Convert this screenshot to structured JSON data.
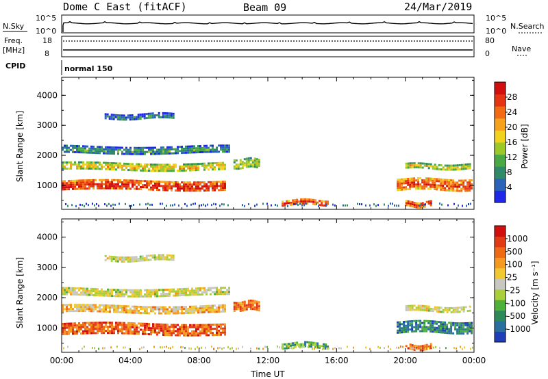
{
  "header": {
    "radar_title": "Dome C East (fitACF)",
    "beam": "Beam 09",
    "date": "24/Mar/2019"
  },
  "aux_panels": {
    "nsky_label": "N.Sky",
    "nsearch_label": "N.Search",
    "left_top": "10^5",
    "left_bottom": "10^0",
    "right_top": "10^5",
    "right_bottom": "10^0",
    "freq_label_1": "Freq.",
    "freq_label_2": "[MHz]",
    "freq_top": "18",
    "freq_bottom": "8",
    "nave_label": "Nave",
    "nave_top": "80",
    "nave_bottom": "0",
    "cpid_label": "CPID",
    "cpid_value": "normal 150"
  },
  "chart_data": [
    {
      "type": "heatmap",
      "title": "",
      "ylabel": "Slant Range [km]",
      "xlabel": "",
      "ylim": [
        200,
        4600
      ],
      "yticks": [
        "1000",
        "2000",
        "3000",
        "4000"
      ],
      "colorbar": {
        "label": "Power [dB]",
        "ticks": [
          "4",
          "8",
          "12",
          "16",
          "20",
          "24",
          "28"
        ],
        "colors": [
          "#1f28e8",
          "#2a63b8",
          "#2f8a6a",
          "#4aa845",
          "#9cc92a",
          "#f0d21f",
          "#f6a21c",
          "#f26a12",
          "#e53414",
          "#d10f0f"
        ]
      },
      "bands": [
        {
          "t0": 0.0,
          "t1": 9.5,
          "r": 1000,
          "w": 170,
          "v": 0.85
        },
        {
          "t0": 0.0,
          "t1": 9.5,
          "r": 1650,
          "w": 110,
          "v": 0.55
        },
        {
          "t0": 0.0,
          "t1": 9.8,
          "r": 2200,
          "w": 120,
          "v": 0.25
        },
        {
          "t0": 2.5,
          "t1": 6.5,
          "r": 3300,
          "w": 100,
          "v": 0.2
        },
        {
          "t0": 10.0,
          "t1": 11.5,
          "r": 1750,
          "w": 150,
          "v": 0.45
        },
        {
          "t0": 12.8,
          "t1": 15.5,
          "r": 450,
          "w": 80,
          "v": 0.85
        },
        {
          "t0": 19.5,
          "t1": 23.9,
          "r": 1050,
          "w": 180,
          "v": 0.75
        },
        {
          "t0": 20.0,
          "t1": 23.8,
          "r": 1650,
          "w": 80,
          "v": 0.5
        },
        {
          "t0": 20.0,
          "t1": 21.5,
          "r": 400,
          "w": 70,
          "v": 0.85
        }
      ]
    },
    {
      "type": "heatmap",
      "title": "",
      "ylabel": "Slant Range [km]",
      "xlabel": "Time UT",
      "ylim": [
        200,
        4600
      ],
      "yticks": [
        "1000",
        "2000",
        "3000",
        "4000"
      ],
      "xticks": [
        "00:00",
        "04:00",
        "08:00",
        "12:00",
        "16:00",
        "20:00",
        "00:00"
      ],
      "xlim_hours": [
        0,
        24
      ],
      "colorbar": {
        "label": "Velocity [m s⁻¹]",
        "ticks": [
          "1000",
          "500",
          "100",
          "25",
          "-25",
          "-100",
          "-500",
          "-1000"
        ],
        "colors": [
          "#1f3fb8",
          "#2b6ea0",
          "#2f8a5a",
          "#4fb13a",
          "#a9cf3a",
          "#c8c8c0",
          "#f0c832",
          "#f59a20",
          "#ef6a14",
          "#e33a16",
          "#d10f0f"
        ]
      },
      "bands": [
        {
          "t0": 0.0,
          "t1": 9.5,
          "r": 1000,
          "w": 170,
          "v": 0.8
        },
        {
          "t0": 0.0,
          "t1": 9.5,
          "r": 1650,
          "w": 110,
          "v": 0.6
        },
        {
          "t0": 0.0,
          "t1": 9.8,
          "r": 2200,
          "w": 120,
          "v": 0.5
        },
        {
          "t0": 2.5,
          "t1": 6.5,
          "r": 3300,
          "w": 100,
          "v": 0.5
        },
        {
          "t0": 10.0,
          "t1": 11.5,
          "r": 1750,
          "w": 150,
          "v": 0.75
        },
        {
          "t0": 12.8,
          "t1": 15.5,
          "r": 450,
          "w": 80,
          "v": 0.3
        },
        {
          "t0": 19.5,
          "t1": 23.9,
          "r": 1050,
          "w": 180,
          "v": 0.2
        },
        {
          "t0": 20.0,
          "t1": 23.8,
          "r": 1650,
          "w": 80,
          "v": 0.5
        },
        {
          "t0": 20.0,
          "t1": 21.5,
          "r": 400,
          "w": 70,
          "v": 0.8
        }
      ]
    }
  ]
}
